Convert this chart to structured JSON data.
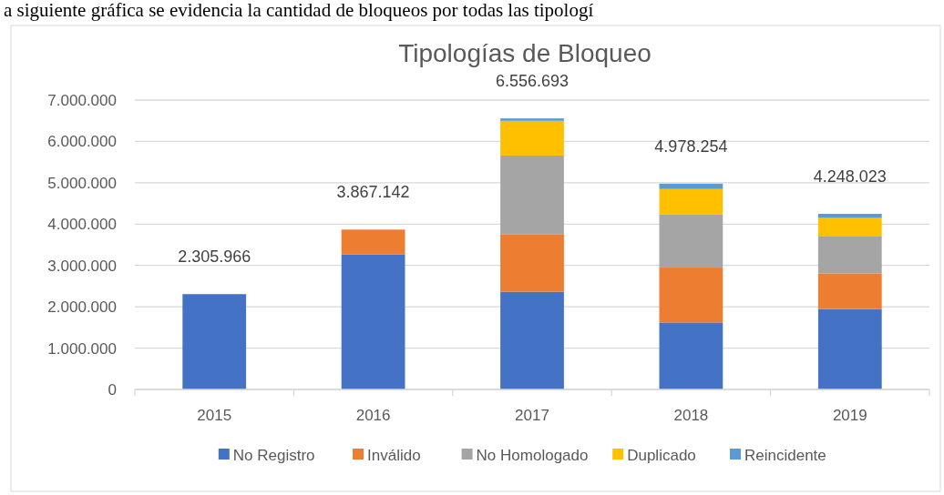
{
  "chart_data": {
    "type": "bar",
    "title": "Tipologías de Bloqueo",
    "stacked": true,
    "categories": [
      "2015",
      "2016",
      "2017",
      "2018",
      "2019"
    ],
    "series": [
      {
        "name": "No Registro",
        "color": "#4472c4",
        "values": [
          2305966,
          3270000,
          2365000,
          1620000,
          1945000
        ]
      },
      {
        "name": "Inválido",
        "color": "#ed7d31",
        "values": [
          0,
          597142,
          1393000,
          1328000,
          863000
        ]
      },
      {
        "name": "No Homologado",
        "color": "#a5a5a5",
        "values": [
          0,
          0,
          1900000,
          1282000,
          906000
        ]
      },
      {
        "name": "Duplicado",
        "color": "#ffc000",
        "values": [
          0,
          0,
          840000,
          619000,
          435000
        ]
      },
      {
        "name": "Reincidente",
        "color": "#5b9bd5",
        "values": [
          0,
          0,
          58693,
          129254,
          99023
        ]
      }
    ],
    "totals": [
      "2.305.966",
      "3.867.142",
      "6.556.693",
      "4.978.254",
      "4.248.023"
    ],
    "ylim": [
      0,
      7000000
    ],
    "yticks": [
      0,
      {
        "value": 1000000,
        "label": "1.000.000"
      },
      {
        "value": 2000000,
        "label": "2.000.000"
      },
      {
        "value": 3000000,
        "label": "3.000.000"
      },
      {
        "value": 4000000,
        "label": "4.000.000"
      },
      {
        "value": 5000000,
        "label": "5.000.000"
      },
      {
        "value": 6000000,
        "label": "6.000.000"
      },
      {
        "value": 7000000,
        "label": "7.000.000"
      }
    ],
    "grid": "y",
    "legend": "bottom",
    "annotations": [
      "a siguiente gráfica se evidencia la cantidad de bloqueos por todas las tipologí"
    ]
  }
}
